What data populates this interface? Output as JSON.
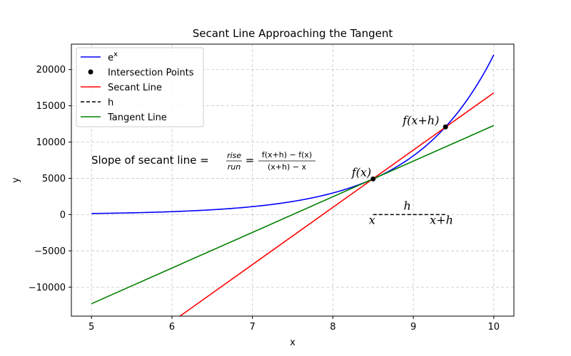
{
  "chart_data": {
    "type": "line",
    "title": "Secant Line Approaching the Tangent",
    "xlabel": "x",
    "ylabel": "y",
    "xlim": [
      4.75,
      10.25
    ],
    "ylim": [
      -14000,
      23500
    ],
    "xticks": [
      5,
      6,
      7,
      8,
      9,
      10
    ],
    "yticks": [
      -10000,
      -5000,
      0,
      5000,
      10000,
      15000,
      20000
    ],
    "ytick_labels": [
      "−10000",
      "−5000",
      "0",
      "5000",
      "10000",
      "15000",
      "20000"
    ],
    "grid": true,
    "legend_position": "top-left",
    "series": [
      {
        "name": "e^x",
        "type": "curve",
        "function": "exp",
        "x_range": [
          5,
          10
        ],
        "color": "#0000ff"
      },
      {
        "name": "Intersection Points",
        "type": "scatter",
        "points": [
          [
            8.5,
            4915
          ],
          [
            9.4,
            12088
          ]
        ],
        "color": "#000000"
      },
      {
        "name": "Secant Line",
        "type": "line",
        "points": [
          [
            6.1,
            -14000
          ],
          [
            10,
            16787
          ]
        ],
        "color": "#ff0000"
      },
      {
        "name": "h",
        "type": "dashed",
        "points": [
          [
            8.5,
            0
          ],
          [
            9.4,
            0
          ]
        ],
        "color": "#000000"
      },
      {
        "name": "Tangent Line",
        "type": "line",
        "points": [
          [
            5,
            -12288
          ],
          [
            10,
            12288
          ]
        ],
        "color": "#008000"
      }
    ],
    "annotations": [
      {
        "text": "f(x)",
        "x": 8.5,
        "y": 4915
      },
      {
        "text": "f(x+h)",
        "x": 9.4,
        "y": 12088
      },
      {
        "text": "h",
        "x": 8.95,
        "y": 0
      },
      {
        "text": "x",
        "x": 8.5,
        "y": 0
      },
      {
        "text": "x+h",
        "x": 9.4,
        "y": 0
      }
    ],
    "formula": {
      "prefix": "Slope of secant line = ",
      "rise": "rise",
      "run": "run",
      "equals": "=",
      "numerator": "f(x+h) − f(x)",
      "denominator": "(x+h) − x"
    },
    "legend_label_ex": "e",
    "legend_label_ex_sup": "x"
  }
}
